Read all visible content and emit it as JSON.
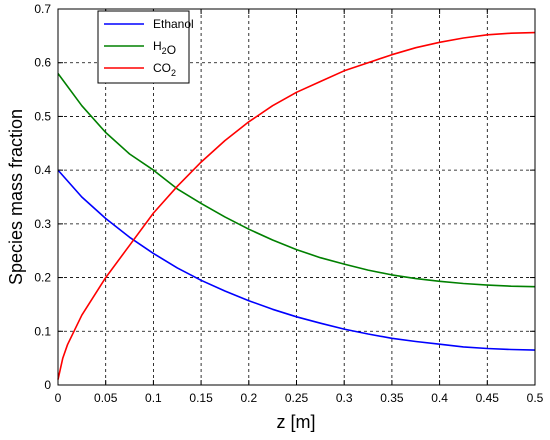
{
  "chart_data": {
    "type": "line",
    "title": "",
    "xlabel": "z [m]",
    "ylabel": "Species mass fraction",
    "xlim": [
      0,
      0.5
    ],
    "ylim": [
      0,
      0.7
    ],
    "x_ticks": [
      "0",
      "0.05",
      "0.1",
      "0.15",
      "0.2",
      "0.25",
      "0.3",
      "0.35",
      "0.4",
      "0.45",
      "0.5"
    ],
    "y_ticks": [
      "0",
      "0.1",
      "0.2",
      "0.3",
      "0.4",
      "0.5",
      "0.6",
      "0.7"
    ],
    "grid": true,
    "grid_style": "dashed",
    "legend_position": "top-left",
    "series": [
      {
        "name": "Ethanol",
        "color": "#0000ff",
        "x": [
          0,
          0.025,
          0.05,
          0.075,
          0.1,
          0.125,
          0.15,
          0.175,
          0.2,
          0.225,
          0.25,
          0.275,
          0.3,
          0.325,
          0.35,
          0.375,
          0.4,
          0.425,
          0.45,
          0.475,
          0.5
        ],
        "y": [
          0.4,
          0.35,
          0.31,
          0.275,
          0.245,
          0.218,
          0.195,
          0.175,
          0.157,
          0.141,
          0.127,
          0.115,
          0.104,
          0.095,
          0.087,
          0.081,
          0.076,
          0.071,
          0.068,
          0.066,
          0.065
        ]
      },
      {
        "name": "H<sub>2</sub>O",
        "color": "#008000",
        "x": [
          0,
          0.025,
          0.05,
          0.075,
          0.1,
          0.125,
          0.15,
          0.175,
          0.2,
          0.225,
          0.25,
          0.275,
          0.3,
          0.325,
          0.35,
          0.375,
          0.4,
          0.425,
          0.45,
          0.475,
          0.5
        ],
        "y": [
          0.58,
          0.52,
          0.47,
          0.43,
          0.4,
          0.365,
          0.338,
          0.313,
          0.29,
          0.27,
          0.252,
          0.237,
          0.225,
          0.214,
          0.205,
          0.198,
          0.193,
          0.189,
          0.186,
          0.184,
          0.183
        ]
      },
      {
        "name": "CO<sub>2</sub>",
        "color": "#ff0000",
        "x": [
          0,
          0.005,
          0.01,
          0.025,
          0.05,
          0.075,
          0.1,
          0.125,
          0.15,
          0.175,
          0.2,
          0.225,
          0.25,
          0.275,
          0.3,
          0.325,
          0.35,
          0.375,
          0.4,
          0.425,
          0.45,
          0.475,
          0.5
        ],
        "y": [
          0.01,
          0.05,
          0.075,
          0.13,
          0.2,
          0.26,
          0.32,
          0.37,
          0.415,
          0.455,
          0.49,
          0.52,
          0.545,
          0.565,
          0.585,
          0.6,
          0.615,
          0.628,
          0.638,
          0.646,
          0.652,
          0.655,
          0.656
        ]
      }
    ]
  }
}
